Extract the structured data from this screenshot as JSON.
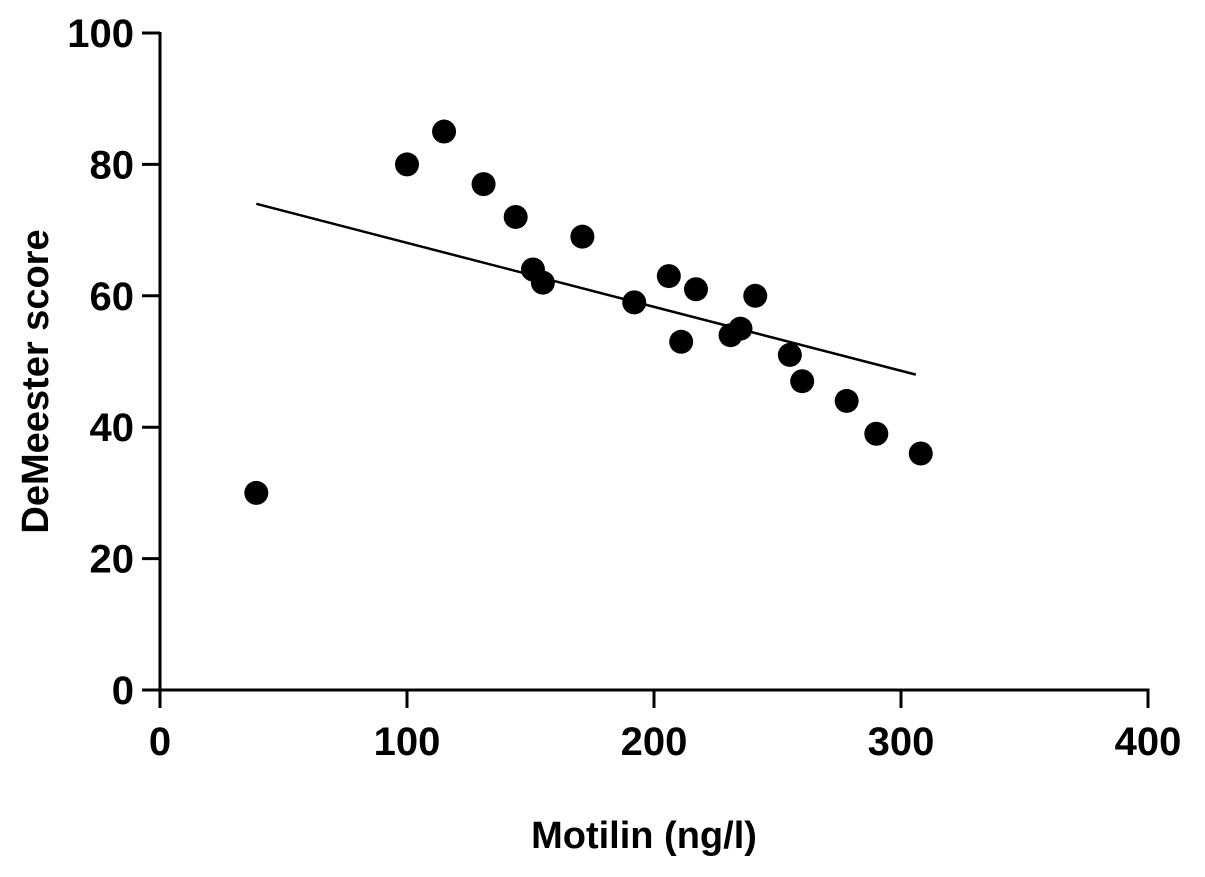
{
  "chart_data": {
    "type": "scatter",
    "title": "",
    "xlabel": "Motilin (ng/l)",
    "ylabel": "DeMeester score",
    "xlim": [
      0,
      400
    ],
    "ylim": [
      0,
      100
    ],
    "xticks": [
      0,
      100,
      200,
      300,
      400
    ],
    "yticks": [
      0,
      20,
      40,
      60,
      80,
      100
    ],
    "xtick_labels": [
      "0",
      "100",
      "200",
      "300",
      "400"
    ],
    "ytick_labels": [
      "0",
      "20",
      "40",
      "60",
      "80",
      "100"
    ],
    "grid": false,
    "legend": "none",
    "series": [
      {
        "points": [
          {
            "x": 39,
            "y": 30
          },
          {
            "x": 100,
            "y": 80
          },
          {
            "x": 115,
            "y": 85
          },
          {
            "x": 131,
            "y": 77
          },
          {
            "x": 144,
            "y": 72
          },
          {
            "x": 151,
            "y": 64
          },
          {
            "x": 155,
            "y": 62
          },
          {
            "x": 171,
            "y": 69
          },
          {
            "x": 192,
            "y": 59
          },
          {
            "x": 206,
            "y": 63
          },
          {
            "x": 211,
            "y": 53
          },
          {
            "x": 217,
            "y": 61
          },
          {
            "x": 231,
            "y": 54
          },
          {
            "x": 235,
            "y": 55
          },
          {
            "x": 241,
            "y": 60
          },
          {
            "x": 255,
            "y": 51
          },
          {
            "x": 260,
            "y": 47
          },
          {
            "x": 278,
            "y": 44
          },
          {
            "x": 290,
            "y": 39
          },
          {
            "x": 308,
            "y": 36
          }
        ]
      }
    ],
    "trendline": {
      "x": [
        39,
        306
      ],
      "y": [
        74,
        48
      ]
    },
    "colors": {
      "marker": "#000000",
      "line": "#000000",
      "axis": "#000000"
    }
  }
}
